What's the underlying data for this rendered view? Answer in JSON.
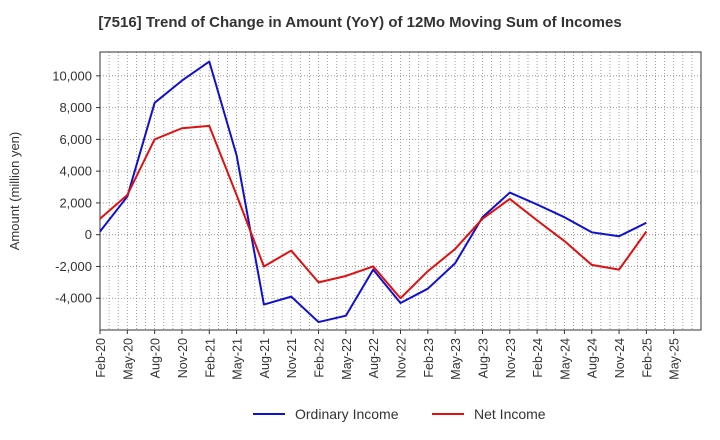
{
  "chart_data": {
    "type": "line",
    "title": "[7516]  Trend of Change in Amount (YoY) of 12Mo Moving Sum of Incomes",
    "xlabel": "",
    "ylabel": "Amount (million yen)",
    "ylim": [
      -6000,
      11500
    ],
    "yticks": [
      -4000,
      -2000,
      0,
      2000,
      4000,
      6000,
      8000,
      10000
    ],
    "ytick_labels": [
      "-4,000",
      "-2,000",
      "0",
      "2,000",
      "4,000",
      "6,000",
      "8,000",
      "10,000"
    ],
    "categories": [
      "Feb-20",
      "May-20",
      "Aug-20",
      "Nov-20",
      "Feb-21",
      "May-21",
      "Aug-21",
      "Nov-21",
      "Feb-22",
      "May-22",
      "Aug-22",
      "Nov-22",
      "Feb-23",
      "May-23",
      "Aug-23",
      "Nov-23",
      "Feb-24",
      "May-24",
      "Aug-24",
      "Nov-24",
      "Feb-25",
      "May-25"
    ],
    "grid": true,
    "legend_position": "bottom",
    "series": [
      {
        "name": "Ordinary Income",
        "color": "#1010d0",
        "values": [
          200,
          2400,
          8300,
          9700,
          10900,
          5000,
          -4400,
          -3900,
          -5500,
          -5100,
          -2200,
          -4300,
          -3400,
          -1800,
          1100,
          2650,
          1900,
          1100,
          150,
          -100,
          750,
          null
        ]
      },
      {
        "name": "Net Income",
        "color": "#e01010",
        "values": [
          1000,
          2500,
          6000,
          6700,
          6850,
          2500,
          -2000,
          -1000,
          -3000,
          -2600,
          -2000,
          -4000,
          -2300,
          -900,
          1000,
          2250,
          900,
          -400,
          -1900,
          -2200,
          200,
          null
        ]
      }
    ]
  }
}
